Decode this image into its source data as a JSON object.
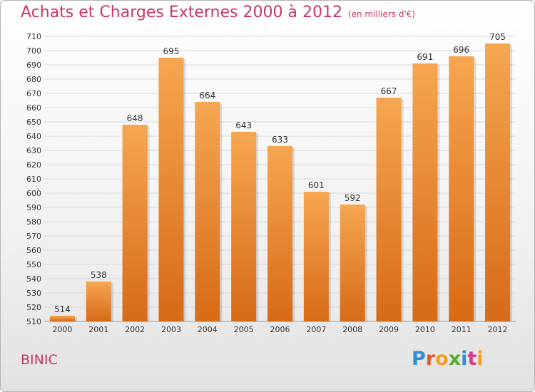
{
  "header": {
    "title": "Achats et Charges Externes 2000 à 2012",
    "unit": "(en milliers d'€)"
  },
  "location": "BINIC",
  "logo": {
    "text": "Proxiti",
    "letters": [
      "P",
      "r",
      "o",
      "x",
      "i",
      "t",
      "i"
    ]
  },
  "colors": {
    "title": "#c8356b",
    "bar_light": "#f6a651",
    "bar_dark": "#d66a17",
    "grid": "#d8d8d8",
    "axis_text": "#333333"
  },
  "chart_data": {
    "type": "bar",
    "title": "Achats et Charges Externes 2000 à 2012",
    "subtitle": "(en milliers d'€)",
    "categories": [
      "2000",
      "2001",
      "2002",
      "2003",
      "2004",
      "2005",
      "2006",
      "2007",
      "2008",
      "2009",
      "2010",
      "2011",
      "2012"
    ],
    "values": [
      514,
      538,
      648,
      695,
      664,
      643,
      633,
      601,
      592,
      667,
      691,
      696,
      705
    ],
    "ylim": [
      510,
      710
    ],
    "yticks": [
      510,
      520,
      530,
      540,
      550,
      560,
      570,
      580,
      590,
      600,
      610,
      620,
      630,
      640,
      650,
      660,
      670,
      680,
      690,
      700,
      710
    ],
    "grid": true,
    "legend": "none"
  }
}
